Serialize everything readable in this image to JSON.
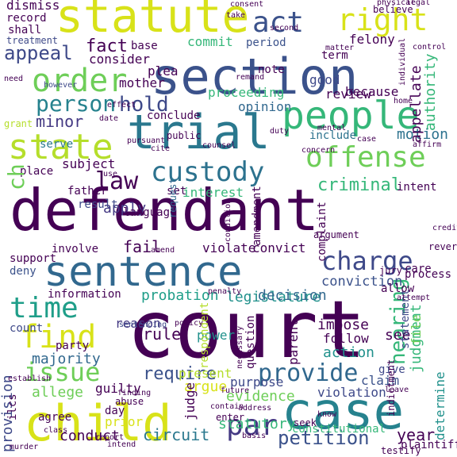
{
  "word_cloud": {
    "palette": {
      "dark_purple": "#440154",
      "indigo": "#443983",
      "slate_blue": "#31688e",
      "teal": "#21918c",
      "green": "#35b779",
      "lime": "#90d743",
      "yellow": "#d8e219",
      "light_yellow": "#fde725"
    },
    "words": [
      {
        "text": "court",
        "color": "#440154"
      },
      {
        "text": "defendant",
        "color": "#440154"
      },
      {
        "text": "section",
        "color": "#3b528b"
      },
      {
        "text": "child",
        "color": "#d8e219"
      },
      {
        "text": "case",
        "color": "#26828e"
      },
      {
        "text": "statute",
        "color": "#d8e219"
      },
      {
        "text": "sentence",
        "color": "#31688e"
      },
      {
        "text": "trial",
        "color": "#2a788e"
      },
      {
        "text": "people",
        "color": "#35b779"
      },
      {
        "text": "offense",
        "color": "#6ece58"
      },
      {
        "text": "custody",
        "color": "#2c728e"
      },
      {
        "text": "state",
        "color": "#b5de2b"
      },
      {
        "text": "order",
        "color": "#6ece58"
      },
      {
        "text": "right",
        "color": "#d8e219"
      },
      {
        "text": "act",
        "color": "#3b528b"
      },
      {
        "text": "charge",
        "color": "#3e4989"
      },
      {
        "text": "time",
        "color": "#1f9e89"
      },
      {
        "text": "find",
        "color": "#d8e219"
      },
      {
        "text": "issue",
        "color": "#6ece58"
      },
      {
        "text": "provide",
        "color": "#31688e"
      },
      {
        "text": "par",
        "color": "#443983"
      },
      {
        "text": "person",
        "color": "#26828e"
      },
      {
        "text": "law",
        "color": "#440154"
      },
      {
        "text": "hold",
        "color": "#3e4989"
      },
      {
        "text": "criminal",
        "color": "#35b779"
      },
      {
        "text": "appeal",
        "color": "#3e4989"
      },
      {
        "text": "fact",
        "color": "#440154"
      },
      {
        "text": "hearing",
        "color": "#35b779"
      },
      {
        "text": "petition",
        "color": "#3b528b"
      },
      {
        "text": "require",
        "color": "#3b528b"
      },
      {
        "text": "provision",
        "color": "#3e4989"
      },
      {
        "text": "majority",
        "color": "#31688e"
      },
      {
        "text": "legislature",
        "color": "#21918c"
      },
      {
        "text": "probation",
        "color": "#1f9e89"
      },
      {
        "text": "conviction",
        "color": "#3b528b"
      },
      {
        "text": "decision",
        "color": "#31688e"
      },
      {
        "text": "judgment",
        "color": "#35b779"
      },
      {
        "text": "minor",
        "color": "#443983"
      },
      {
        "text": "rule",
        "color": "#440154"
      },
      {
        "text": "evidence",
        "color": "#6ece58"
      },
      {
        "text": "circuit",
        "color": "#2a788e"
      },
      {
        "text": "statutory",
        "color": "#35b779"
      },
      {
        "text": "conduct",
        "color": "#440154"
      },
      {
        "text": "year",
        "color": "#440154"
      },
      {
        "text": "determine",
        "color": "#21918c"
      },
      {
        "text": "interest",
        "color": "#35b779"
      },
      {
        "text": "apply",
        "color": "#443983"
      },
      {
        "text": "fail",
        "color": "#440154"
      },
      {
        "text": "violation",
        "color": "#3e4989"
      },
      {
        "text": "action",
        "color": "#21918c"
      },
      {
        "text": "see",
        "color": "#440154"
      },
      {
        "text": "impose",
        "color": "#440154"
      },
      {
        "text": "parent",
        "color": "#440154"
      },
      {
        "text": "follow",
        "color": "#440154"
      },
      {
        "text": "allege",
        "color": "#6ece58"
      },
      {
        "text": "guilty",
        "color": "#440154"
      },
      {
        "text": "argue",
        "color": "#d8e219"
      },
      {
        "text": "present",
        "color": "#b5de2b"
      },
      {
        "text": "purpose",
        "color": "#3e4989"
      },
      {
        "text": "judge",
        "color": "#440154"
      },
      {
        "text": "prior",
        "color": "#d8e219"
      },
      {
        "text": "day",
        "color": "#440154"
      },
      {
        "text": "power",
        "color": "#21918c"
      },
      {
        "text": "reason",
        "color": "#443983"
      },
      {
        "text": "party",
        "color": "#440154"
      },
      {
        "text": "count",
        "color": "#3e4989"
      },
      {
        "text": "support",
        "color": "#440154"
      },
      {
        "text": "deny",
        "color": "#3b528b"
      },
      {
        "text": "involve",
        "color": "#440154"
      },
      {
        "text": "violate",
        "color": "#440154"
      },
      {
        "text": "convict",
        "color": "#440154"
      },
      {
        "text": "statement",
        "color": "#3e4989"
      },
      {
        "text": "claim",
        "color": "#3b528b"
      },
      {
        "text": "file",
        "color": "#6ece58"
      },
      {
        "text": "give",
        "color": "#3e4989"
      },
      {
        "text": "motion",
        "color": "#2c728e"
      },
      {
        "text": "include",
        "color": "#2c728e"
      },
      {
        "text": "review",
        "color": "#440154"
      },
      {
        "text": "opinion",
        "color": "#31688e"
      },
      {
        "text": "proceeding",
        "color": "#35b779"
      },
      {
        "text": "note",
        "color": "#440154"
      },
      {
        "text": "good",
        "color": "#3e4989"
      },
      {
        "text": "because",
        "color": "#440154"
      },
      {
        "text": "term",
        "color": "#440154"
      },
      {
        "text": "felony",
        "color": "#440154"
      },
      {
        "text": "commit",
        "color": "#35b779"
      },
      {
        "text": "period",
        "color": "#3b528b"
      },
      {
        "text": "consider",
        "color": "#440154"
      },
      {
        "text": "base",
        "color": "#440154"
      },
      {
        "text": "plea",
        "color": "#440154"
      },
      {
        "text": "mother",
        "color": "#440154"
      },
      {
        "text": "conclude",
        "color": "#440154"
      },
      {
        "text": "public",
        "color": "#440154"
      },
      {
        "text": "subject",
        "color": "#440154"
      },
      {
        "text": "serve",
        "color": "#2a788e"
      },
      {
        "text": "father",
        "color": "#440154"
      },
      {
        "text": "place",
        "color": "#440154"
      },
      {
        "text": "set",
        "color": "#440154"
      },
      {
        "text": "language",
        "color": "#440154"
      },
      {
        "text": "request",
        "color": "#31688e"
      },
      {
        "text": "result",
        "color": "#3e4989"
      },
      {
        "text": "authority",
        "color": "#35b779"
      },
      {
        "text": "appellate",
        "color": "#440154"
      },
      {
        "text": "dismiss",
        "color": "#440154"
      },
      {
        "text": "record",
        "color": "#440154"
      },
      {
        "text": "shall",
        "color": "#440154"
      },
      {
        "text": "treatment",
        "color": "#3e4989"
      },
      {
        "text": "however",
        "color": "#3e4989"
      },
      {
        "text": "information",
        "color": "#440154"
      },
      {
        "text": "process",
        "color": "#440154"
      },
      {
        "text": "care",
        "color": "#440154"
      },
      {
        "text": "intent",
        "color": "#440154"
      },
      {
        "text": "complaint",
        "color": "#440154"
      },
      {
        "text": "amendment",
        "color": "#440154"
      },
      {
        "text": "question",
        "color": "#440154"
      },
      {
        "text": "constitutional",
        "color": "#35b779"
      },
      {
        "text": "plaintiff",
        "color": "#440154"
      },
      {
        "text": "indictment",
        "color": "#440154"
      },
      {
        "text": "jury",
        "color": "#440154"
      },
      {
        "text": "allow",
        "color": "#440154"
      },
      {
        "text": "seek",
        "color": "#440154"
      },
      {
        "text": "agree",
        "color": "#440154"
      },
      {
        "text": "enter",
        "color": "#440154"
      },
      {
        "text": "argument",
        "color": "#440154"
      },
      {
        "text": "condition",
        "color": "#440154"
      },
      {
        "text": "ch",
        "color": "#6ece58"
      },
      {
        "text": "ilcs",
        "color": "#440154"
      },
      {
        "text": "establish",
        "color": "#440154"
      },
      {
        "text": "testify",
        "color": "#440154"
      },
      {
        "text": "abuse",
        "color": "#440154"
      },
      {
        "text": "finding",
        "color": "#440154"
      },
      {
        "text": "sentencing",
        "color": "#3e4989"
      },
      {
        "text": "murder",
        "color": "#440154"
      },
      {
        "text": "class",
        "color": "#440154"
      },
      {
        "text": "intend",
        "color": "#440154"
      },
      {
        "text": "leave",
        "color": "#440154"
      },
      {
        "text": "respondent",
        "color": "#b5de2b"
      },
      {
        "text": "concern",
        "color": "#440154"
      },
      {
        "text": "mental",
        "color": "#440154"
      },
      {
        "text": "home",
        "color": "#440154"
      },
      {
        "text": "control",
        "color": "#440154"
      },
      {
        "text": "matter",
        "color": "#440154"
      },
      {
        "text": "consent",
        "color": "#440154"
      },
      {
        "text": "believe",
        "color": "#440154"
      },
      {
        "text": "physical",
        "color": "#440154"
      },
      {
        "text": "take",
        "color": "#440154"
      },
      {
        "text": "effect",
        "color": "#440154"
      },
      {
        "text": "date",
        "color": "#440154"
      },
      {
        "text": "grant",
        "color": "#b5de2b"
      },
      {
        "text": "pursuant",
        "color": "#440154"
      },
      {
        "text": "reverse",
        "color": "#440154"
      },
      {
        "text": "credit",
        "color": "#440154"
      },
      {
        "text": "need",
        "color": "#440154"
      },
      {
        "text": "cite",
        "color": "#440154"
      },
      {
        "text": "use",
        "color": "#440154"
      },
      {
        "text": "legal",
        "color": "#440154"
      },
      {
        "text": "affirm",
        "color": "#440154"
      },
      {
        "text": "remand",
        "color": "#440154"
      },
      {
        "text": "attempt",
        "color": "#440154"
      },
      {
        "text": "address",
        "color": "#440154"
      },
      {
        "text": "second",
        "color": "#440154"
      },
      {
        "text": "counsel",
        "color": "#440154"
      },
      {
        "text": "amend",
        "color": "#440154"
      },
      {
        "text": "penalty",
        "color": "#440154"
      },
      {
        "text": "contain",
        "color": "#440154"
      },
      {
        "text": "necessary",
        "color": "#440154"
      },
      {
        "text": "individual",
        "color": "#440154"
      },
      {
        "text": "duty",
        "color": "#440154"
      },
      {
        "text": "report",
        "color": "#440154"
      },
      {
        "text": "policy",
        "color": "#440154"
      },
      {
        "text": "know",
        "color": "#440154"
      },
      {
        "text": "basis",
        "color": "#440154"
      },
      {
        "text": "future",
        "color": "#440154"
      },
      {
        "text": "case",
        "color": "#440154"
      }
    ]
  }
}
